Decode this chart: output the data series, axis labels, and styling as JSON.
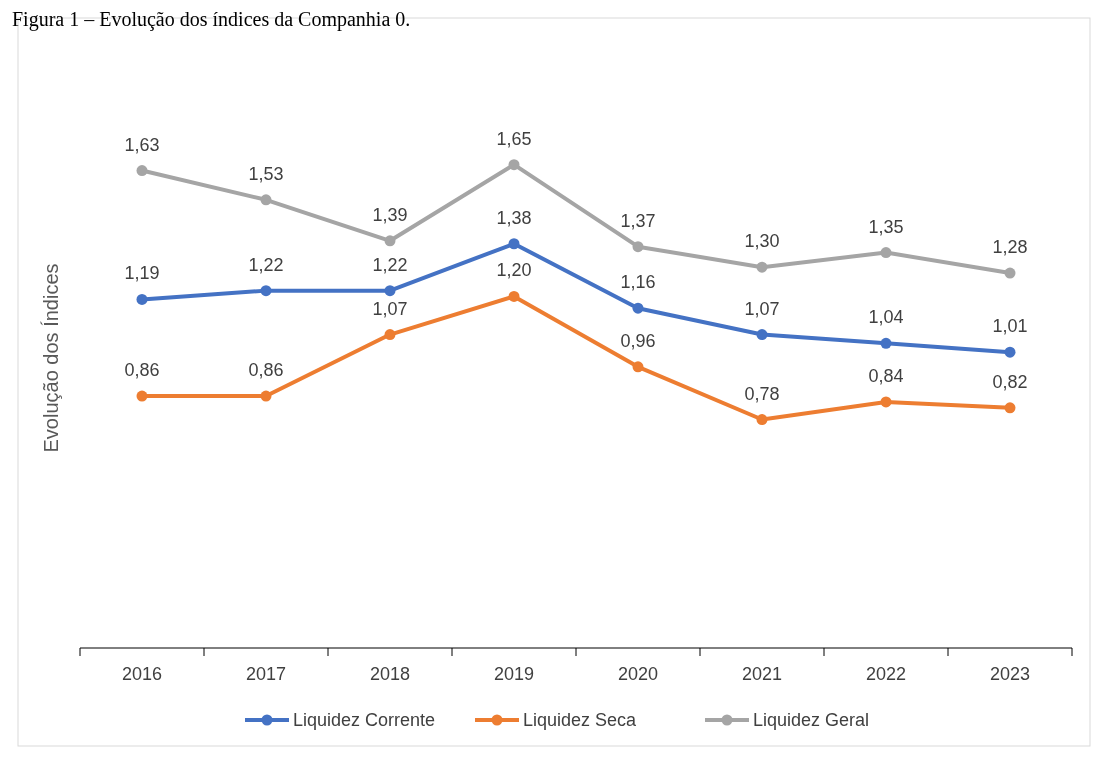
{
  "chart_data": {
    "type": "line",
    "title": "Figura 1 – Evolução dos índices da Companhia 0.",
    "ylabel": "Evolução dos Índices",
    "categories": [
      "2016",
      "2017",
      "2018",
      "2019",
      "2020",
      "2021",
      "2022",
      "2023"
    ],
    "series": [
      {
        "name": "Liquidez Corrente",
        "color": "#4472c4",
        "values": [
          1.19,
          1.22,
          1.22,
          1.38,
          1.16,
          1.07,
          1.04,
          1.01
        ],
        "value_labels": [
          "1,19",
          "1,22",
          "1,22",
          "1,38",
          "1,16",
          "1,07",
          "1,04",
          "1,01"
        ]
      },
      {
        "name": "Liquidez Seca",
        "color": "#ed7d31",
        "values": [
          0.86,
          0.86,
          1.07,
          1.2,
          0.96,
          0.78,
          0.84,
          0.82
        ],
        "value_labels": [
          "0,86",
          "0,86",
          "1,07",
          "1,20",
          "0,96",
          "0,78",
          "0,84",
          "0,82"
        ]
      },
      {
        "name": "Liquidez Geral",
        "color": "#a5a5a5",
        "values": [
          1.63,
          1.53,
          1.39,
          1.65,
          1.37,
          1.3,
          1.35,
          1.28
        ],
        "value_labels": [
          "1,63",
          "1,53",
          "1,39",
          "1,65",
          "1,37",
          "1,30",
          "1,35",
          "1,28"
        ]
      }
    ],
    "legend": "bottom",
    "marker": "circle",
    "line_style": "solid",
    "grid": false
  }
}
